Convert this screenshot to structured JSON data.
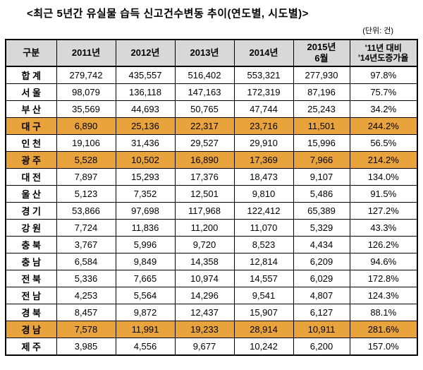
{
  "title": "<최근 5년간 유실물 습득 신고건수변동 추이(연도별, 시도별)>",
  "unit_label": "(단위: 건)",
  "colors": {
    "highlight": "#e8a33c",
    "header_bg": "#d8d8d8",
    "border": "#000000"
  },
  "table": {
    "headers": [
      "구분",
      "2011년",
      "2012년",
      "2013년",
      "2014년",
      "2015년\n6월",
      "'11년 대비\n'14년도증가율"
    ],
    "rows": [
      {
        "label": "합 계",
        "values": [
          "279,742",
          "435,557",
          "516,402",
          "553,321",
          "277,930",
          "97.8%"
        ],
        "highlight": false
      },
      {
        "label": "서 울",
        "values": [
          "98,079",
          "136,118",
          "147,163",
          "172,319",
          "87,196",
          "75.7%"
        ],
        "highlight": false
      },
      {
        "label": "부 산",
        "values": [
          "35,569",
          "44,693",
          "50,765",
          "47,744",
          "25,243",
          "34.2%"
        ],
        "highlight": false
      },
      {
        "label": "대 구",
        "values": [
          "6,890",
          "25,136",
          "22,317",
          "23,716",
          "11,501",
          "244.2%"
        ],
        "highlight": true
      },
      {
        "label": "인 천",
        "values": [
          "19,106",
          "31,436",
          "29,527",
          "29,910",
          "15,996",
          "56.5%"
        ],
        "highlight": false
      },
      {
        "label": "광 주",
        "values": [
          "5,528",
          "10,502",
          "16,890",
          "17,369",
          "7,966",
          "214.2%"
        ],
        "highlight": true
      },
      {
        "label": "대 전",
        "values": [
          "7,897",
          "15,293",
          "17,376",
          "18,473",
          "9,107",
          "134.0%"
        ],
        "highlight": false
      },
      {
        "label": "울 산",
        "values": [
          "5,123",
          "7,352",
          "12,501",
          "9,810",
          "5,486",
          "91.5%"
        ],
        "highlight": false
      },
      {
        "label": "경 기",
        "values": [
          "53,866",
          "97,698",
          "117,968",
          "122,412",
          "65,389",
          "127.2%"
        ],
        "highlight": false
      },
      {
        "label": "강 원",
        "values": [
          "7,724",
          "11,836",
          "11,200",
          "11,070",
          "5,329",
          "43.3%"
        ],
        "highlight": false
      },
      {
        "label": "충 북",
        "values": [
          "3,767",
          "5,996",
          "9,720",
          "8,523",
          "4,434",
          "126.2%"
        ],
        "highlight": false
      },
      {
        "label": "충 남",
        "values": [
          "6,584",
          "9,849",
          "14,358",
          "12,814",
          "6,209",
          "94.6%"
        ],
        "highlight": false
      },
      {
        "label": "전 북",
        "values": [
          "5,336",
          "7,665",
          "10,974",
          "14,557",
          "6,029",
          "172.8%"
        ],
        "highlight": false
      },
      {
        "label": "전 남",
        "values": [
          "4,253",
          "5,564",
          "14,296",
          "9,541",
          "4,807",
          "124.3%"
        ],
        "highlight": false
      },
      {
        "label": "경 북",
        "values": [
          "8,457",
          "9,872",
          "12,437",
          "15,907",
          "6,127",
          "88.1%"
        ],
        "highlight": false
      },
      {
        "label": "경 남",
        "values": [
          "7,578",
          "11,991",
          "19,233",
          "28,914",
          "10,911",
          "281.6%"
        ],
        "highlight": true
      },
      {
        "label": "제 주",
        "values": [
          "3,985",
          "4,556",
          "9,677",
          "10,242",
          "6,200",
          "157.0%"
        ],
        "highlight": false
      }
    ]
  }
}
